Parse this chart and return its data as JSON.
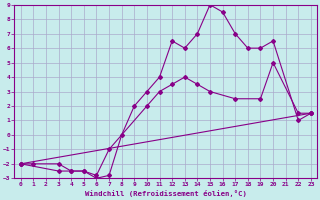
{
  "background_color": "#c8ecec",
  "grid_color": "#aaaacc",
  "line_color": "#880088",
  "marker": "D",
  "markersize": 2,
  "linewidth": 0.8,
  "xlabel": "Windchill (Refroidissement éolien,°C)",
  "xlim": [
    -0.5,
    23.5
  ],
  "ylim": [
    -3,
    9
  ],
  "series": [
    {
      "x": [
        0,
        1,
        3,
        4,
        5,
        6,
        7,
        8,
        9,
        10,
        11,
        12,
        13,
        14,
        15,
        16,
        17,
        18,
        19,
        20,
        22,
        23
      ],
      "y": [
        -2,
        -2,
        -2,
        -2.5,
        -2.5,
        -3,
        -2.8,
        0,
        2,
        3,
        4,
        6.5,
        6,
        7,
        9,
        8.5,
        7,
        6,
        6,
        6.5,
        1,
        1.5
      ]
    },
    {
      "x": [
        0,
        3,
        4,
        5,
        6,
        7,
        10,
        11,
        12,
        13,
        14,
        15,
        17,
        19,
        20,
        22,
        23
      ],
      "y": [
        -2,
        -2.5,
        -2.5,
        -2.5,
        -2.8,
        -1,
        2,
        3,
        3.5,
        4,
        3.5,
        3,
        2.5,
        2.5,
        5,
        1.5,
        1.5
      ]
    },
    {
      "x": [
        0,
        23
      ],
      "y": [
        -2,
        1.5
      ]
    }
  ]
}
